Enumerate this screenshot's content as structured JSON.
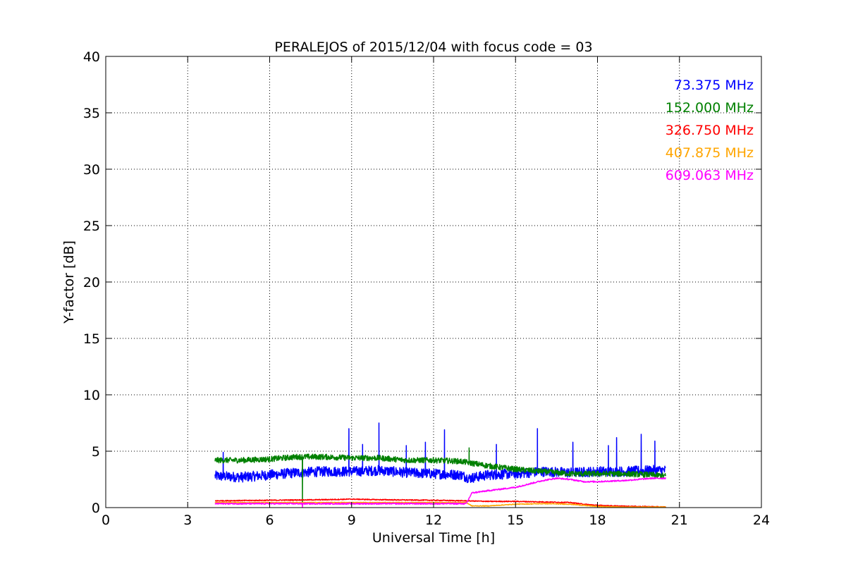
{
  "chart_data": {
    "type": "line",
    "title": "PERALEJOS of 2015/12/04 with focus code = 03",
    "xlabel": "Universal Time [h]",
    "ylabel": "Y-factor [dB]",
    "xlim": [
      0,
      24
    ],
    "ylim": [
      0,
      40
    ],
    "xticks": [
      0,
      3,
      6,
      9,
      12,
      15,
      18,
      21,
      24
    ],
    "yticks": [
      0,
      5,
      10,
      15,
      20,
      25,
      30,
      35,
      40
    ],
    "xtick_labels": [
      "0",
      "3",
      "6",
      "9",
      "12",
      "15",
      "18",
      "21",
      "24"
    ],
    "ytick_labels": [
      "0",
      "5",
      "10",
      "15",
      "20",
      "25",
      "30",
      "35",
      "40"
    ],
    "grid": true,
    "legend_position": "top-right",
    "series": [
      {
        "name": "73.375 MHz",
        "color": "#0000ff",
        "noise": 0.45,
        "spikes": [
          [
            4.3,
            4.9
          ],
          [
            8.9,
            7.0
          ],
          [
            9.4,
            5.6
          ],
          [
            10.0,
            7.5
          ],
          [
            11.0,
            5.5
          ],
          [
            11.7,
            5.8
          ],
          [
            12.4,
            6.9
          ],
          [
            14.3,
            5.6
          ],
          [
            15.8,
            7.0
          ],
          [
            17.1,
            5.8
          ],
          [
            18.4,
            5.5
          ],
          [
            18.7,
            6.2
          ],
          [
            19.6,
            6.5
          ],
          [
            20.1,
            5.9
          ]
        ],
        "x": [
          4.0,
          5.0,
          6.0,
          7.0,
          8.0,
          9.0,
          10.0,
          11.0,
          12.0,
          13.0,
          13.3,
          14.0,
          15.0,
          16.0,
          17.0,
          18.0,
          19.0,
          20.0,
          20.5
        ],
        "y": [
          2.8,
          2.7,
          2.9,
          3.1,
          3.2,
          3.2,
          3.3,
          3.1,
          3.0,
          2.9,
          2.6,
          2.9,
          3.0,
          3.2,
          3.1,
          3.2,
          3.2,
          3.3,
          3.3
        ]
      },
      {
        "name": "152.000 MHz",
        "color": "#008000",
        "noise": 0.25,
        "spikes": [
          [
            7.2,
            0.2
          ],
          [
            13.3,
            5.3
          ]
        ],
        "x": [
          4.0,
          5.0,
          6.0,
          7.0,
          8.0,
          9.0,
          10.0,
          11.0,
          12.0,
          13.0,
          13.5,
          14.0,
          15.0,
          16.0,
          17.0,
          18.0,
          19.0,
          20.0,
          20.5
        ],
        "y": [
          4.2,
          4.2,
          4.3,
          4.5,
          4.5,
          4.4,
          4.4,
          4.2,
          4.2,
          4.1,
          3.9,
          3.7,
          3.4,
          3.2,
          3.0,
          3.0,
          3.0,
          2.9,
          2.8
        ]
      },
      {
        "name": "326.750 MHz",
        "color": "#ff0000",
        "noise": 0.04,
        "spikes": [],
        "x": [
          4.0,
          6.0,
          8.0,
          9.0,
          10.0,
          12.0,
          13.2,
          14.0,
          15.0,
          16.0,
          17.0,
          17.5,
          18.0,
          19.0,
          20.0,
          20.5
        ],
        "y": [
          0.6,
          0.65,
          0.7,
          0.75,
          0.7,
          0.65,
          0.6,
          0.55,
          0.55,
          0.5,
          0.45,
          0.3,
          0.2,
          0.12,
          0.08,
          0.05
        ]
      },
      {
        "name": "407.875 MHz",
        "color": "#ffa500",
        "noise": 0.03,
        "spikes": [],
        "x": [
          4.0,
          8.0,
          12.0,
          13.2,
          13.4,
          14.0,
          15.0,
          16.0,
          17.0,
          18.0,
          19.0,
          20.0,
          20.5
        ],
        "y": [
          0.45,
          0.45,
          0.45,
          0.45,
          0.15,
          0.15,
          0.3,
          0.35,
          0.3,
          0.1,
          0.05,
          0.05,
          0.05
        ]
      },
      {
        "name": "609.063 MHz",
        "color": "#ff00ff",
        "noise": 0.06,
        "spikes": [
          [
            7.2,
            0.05
          ]
        ],
        "x": [
          4.0,
          6.0,
          8.0,
          10.0,
          12.0,
          13.2,
          13.4,
          14.0,
          15.0,
          15.5,
          16.0,
          16.5,
          17.0,
          17.5,
          18.0,
          19.0,
          20.0,
          20.5
        ],
        "y": [
          0.35,
          0.35,
          0.35,
          0.35,
          0.35,
          0.35,
          1.3,
          1.5,
          1.8,
          2.1,
          2.4,
          2.6,
          2.5,
          2.3,
          2.3,
          2.4,
          2.6,
          2.6
        ]
      }
    ]
  }
}
